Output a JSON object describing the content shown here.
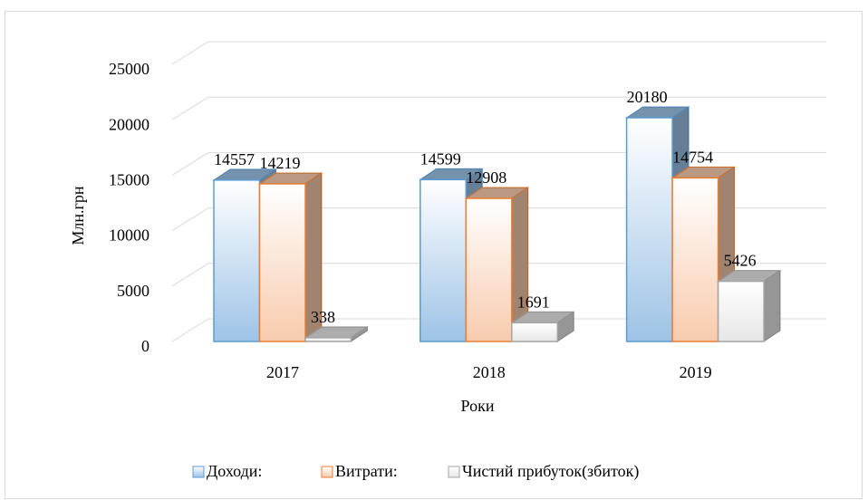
{
  "chart_data": {
    "type": "bar3d",
    "categories": [
      "2017",
      "2018",
      "2019"
    ],
    "series": [
      {
        "name": "Доходи:",
        "color": "#9dc3e6",
        "values": [
          14557,
          14599,
          20180
        ]
      },
      {
        "name": "Витрати:",
        "color": "#f8cbad",
        "values": [
          14219,
          12908,
          14754
        ]
      },
      {
        "name": "Чистий прибуток(збиток)",
        "color": "#e7e6e6",
        "values": [
          338,
          1691,
          5426
        ]
      }
    ],
    "xlabel": "Роки",
    "ylabel": "Млн.грн",
    "ylim": [
      0,
      25000
    ],
    "yticks": [
      0,
      5000,
      10000,
      15000,
      20000,
      25000
    ],
    "grid": true,
    "legend": "bottom"
  }
}
